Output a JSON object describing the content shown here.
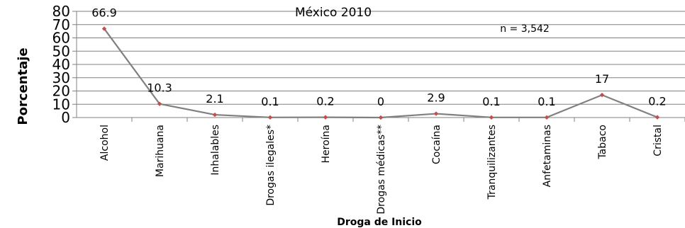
{
  "chart_data": {
    "type": "line",
    "title": "México 2010",
    "annotation": "n = 3,542",
    "xlabel": "Droga de Inicio",
    "ylabel": "Porcentaje",
    "ylim": [
      0,
      80
    ],
    "yticks": [
      0,
      10,
      20,
      30,
      40,
      50,
      60,
      70,
      80
    ],
    "grid": true,
    "categories": [
      "Alcohol",
      "Marihuana",
      "Inhalables",
      "Drogas ilegales*",
      "Heroína",
      "Drogas médicas**",
      "Cocaína",
      "Tranquilizantes",
      "Anfetaminas",
      "Tabaco",
      "Cristal"
    ],
    "data_labels": [
      "66.9",
      "10.3",
      "2.1",
      "0.1",
      "0.2",
      "0",
      "2.9",
      "0.1",
      "0.1",
      "17",
      "0.2"
    ],
    "series": [
      {
        "values": [
          66.9,
          10.3,
          2.1,
          0.1,
          0.2,
          0,
          2.9,
          0.1,
          0.1,
          17,
          0.2
        ],
        "line_color": "#808080",
        "marker_color": "#c0504d"
      }
    ],
    "colors": {
      "grid": "#808080",
      "axis": "#808080"
    }
  }
}
